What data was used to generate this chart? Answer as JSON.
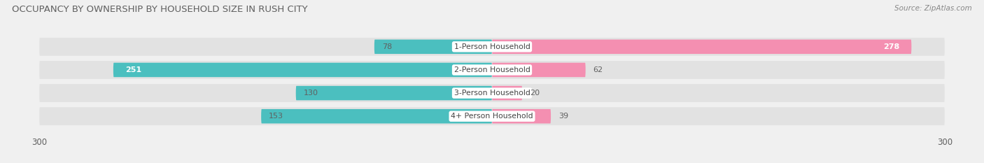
{
  "title": "OCCUPANCY BY OWNERSHIP BY HOUSEHOLD SIZE IN RUSH CITY",
  "source": "Source: ZipAtlas.com",
  "categories": [
    "1-Person Household",
    "2-Person Household",
    "3-Person Household",
    "4+ Person Household"
  ],
  "owner_values": [
    78,
    251,
    130,
    153
  ],
  "renter_values": [
    278,
    62,
    20,
    39
  ],
  "owner_color": "#4bbfbf",
  "renter_color": "#f48fb1",
  "axis_max": 300,
  "background_color": "#f0f0f0",
  "bar_bg_color": "#e2e2e2",
  "title_color": "#606060",
  "label_color": "#606060",
  "value_label_inside_color": "white",
  "value_label_outside_color": "#606060"
}
